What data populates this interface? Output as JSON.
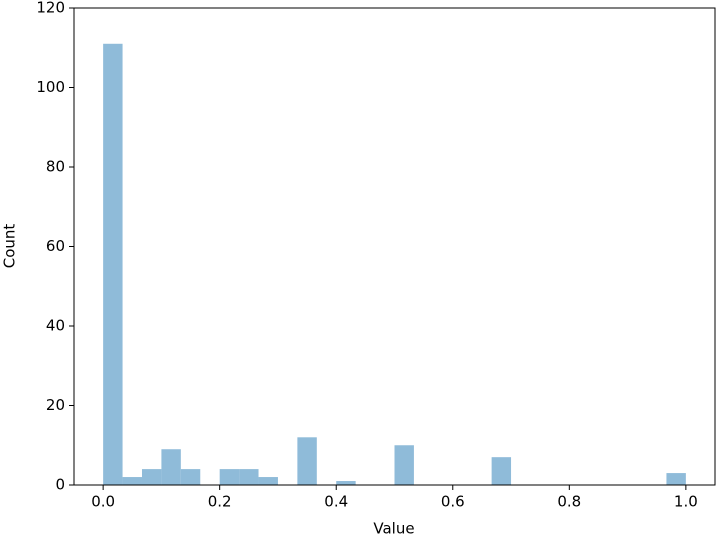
{
  "chart_data": {
    "type": "histogram",
    "xlabel": "Value",
    "ylabel": "Count",
    "color": "#8fbbd9",
    "bins": [
      0,
      0.03333,
      0.06667,
      0.1,
      0.13333,
      0.16667,
      0.2,
      0.23333,
      0.26667,
      0.3,
      0.33333,
      0.36667,
      0.4,
      0.43333,
      0.46667,
      0.5,
      0.53333,
      0.56667,
      0.6,
      0.63333,
      0.66667,
      0.7,
      0.73333,
      0.76667,
      0.8,
      0.83333,
      0.86667,
      0.9,
      0.93333,
      0.96667,
      1
    ],
    "values": [
      111,
      2,
      4,
      9,
      4,
      0,
      4,
      4,
      2,
      0,
      12,
      0,
      1,
      0,
      0,
      10,
      0,
      0,
      0,
      0,
      7,
      0,
      0,
      0,
      0,
      0,
      0,
      0,
      0,
      3
    ],
    "xlim": [
      -0.05,
      1.05
    ],
    "ylim": [
      0,
      120
    ],
    "xticks": [
      {
        "value": 0,
        "label": "0.0"
      },
      0.2,
      0.4,
      0.6,
      0.8,
      {
        "value": 1,
        "label": "1.0"
      }
    ],
    "yticks": [
      0,
      20,
      40,
      60,
      80,
      100,
      120
    ]
  }
}
